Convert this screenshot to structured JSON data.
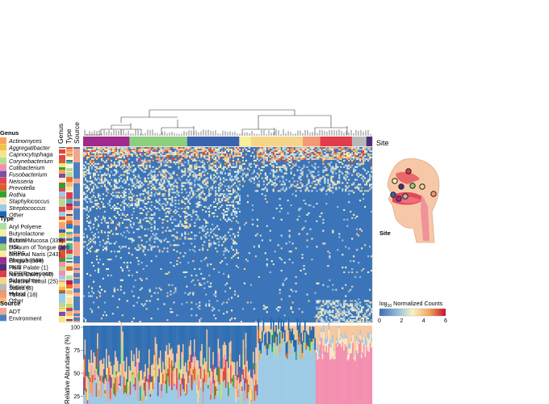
{
  "chart_data": {
    "type": "heatmap",
    "heatmap": {
      "row_annotations": [
        "Genus",
        "Type",
        "Source"
      ],
      "column_annotation": "Site",
      "site_order": [
        "Gingiva",
        "Dorsum of Tongue",
        "Buccal Mucosa",
        "External Naris",
        "Palatine Tonsil",
        "Throat",
        "Nasal Cavity",
        "Saliva",
        "Hard Palate"
      ],
      "site_fractions": [
        0.16,
        0.2,
        0.18,
        0.04,
        0.18,
        0.06,
        0.11,
        0.05,
        0.02
      ],
      "colorbar": {
        "title_pre": "log",
        "title_sub": "10",
        "title_post": " Normalized Counts",
        "ticks": [
          "0",
          "2",
          "4",
          "6"
        ],
        "range": [
          0,
          6
        ],
        "colors": [
          "#3b6fb0",
          "#9fc3dc",
          "#f7f2c2",
          "#f6a65c",
          "#c8102e"
        ]
      }
    },
    "barplot": {
      "ylabel": "Relative Abundance (%)",
      "yticks": [
        "100",
        "75",
        "50",
        "25"
      ],
      "ylim": [
        25,
        100
      ]
    },
    "legends": {
      "genus": {
        "title": "Genus",
        "items": [
          {
            "label": "Actinomyces",
            "color": "#f7a35c"
          },
          {
            "label": "Aggregatibacter",
            "color": "#f0c24a"
          },
          {
            "label": "Capnocytophaga",
            "color": "#f5e48a"
          },
          {
            "label": "Corynebacterium",
            "color": "#b7dc8e"
          },
          {
            "label": "Cutibacterium",
            "color": "#f48fb1"
          },
          {
            "label": "Fusobacterium",
            "color": "#7b4fa2"
          },
          {
            "label": "Neisseria",
            "color": "#e0454e"
          },
          {
            "label": "Prevotella",
            "color": "#d95f27"
          },
          {
            "label": "Rothia",
            "color": "#33a02c"
          },
          {
            "label": "Staphylococcus",
            "color": "#fde7c6"
          },
          {
            "label": "Streptococcus",
            "color": "#9ccbe8"
          },
          {
            "label": "Other",
            "color": "#2166ac"
          }
        ]
      },
      "type": {
        "title": "Type",
        "items": [
          {
            "label": "Aryl Polyene",
            "color": "#aee0a0"
          },
          {
            "label": "Butyrolactone",
            "color": "#f6f0a0"
          },
          {
            "label": "Ectoine",
            "color": "#3778b5"
          },
          {
            "label": "HSL",
            "color": "#5e3c99"
          },
          {
            "label": "NRPS",
            "color": "#e6394f"
          },
          {
            "label": "Phosphonate",
            "color": "#fbe3a2"
          },
          {
            "label": "PKS",
            "color": "#4db6a8"
          },
          {
            "label": "RiPP/Bacteriocin",
            "color": "#c2185b"
          },
          {
            "label": "Siderophore",
            "color": "#fbf7d8"
          },
          {
            "label": "Terpene",
            "color": "#b9dc6a"
          },
          {
            "label": "Hybrid",
            "color": "#f06a2e"
          },
          {
            "label": "Other",
            "color": "#f7b77a"
          }
        ]
      },
      "source": {
        "title": "Source",
        "items": [
          {
            "label": "ADT",
            "color": "#f2a68e"
          },
          {
            "label": "Environment",
            "color": "#4f80bd"
          }
        ]
      },
      "site": {
        "title": "Site",
        "items": [
          {
            "label": "Buccal Mucosa (339)",
            "color": "#3a63ad"
          },
          {
            "label": "Dorsum of Tongue (386",
            "color": "#8ccf7e"
          },
          {
            "label": "External Naris (243)",
            "color": "#f6ef9b"
          },
          {
            "label": "Gingiva (364)",
            "color": "#a2298c"
          },
          {
            "label": "Hard Palate (1)",
            "color": "#4a2f7a"
          },
          {
            "label": "Nasal Cavity (40)",
            "color": "#e23b4b"
          },
          {
            "label": "Palatine Tonsil (25)",
            "color": "#f4d58a"
          },
          {
            "label": "Saliva (8)",
            "color": "#b8b8b8"
          },
          {
            "label": "Throat (18)",
            "color": "#f29a76"
          }
        ]
      }
    }
  }
}
